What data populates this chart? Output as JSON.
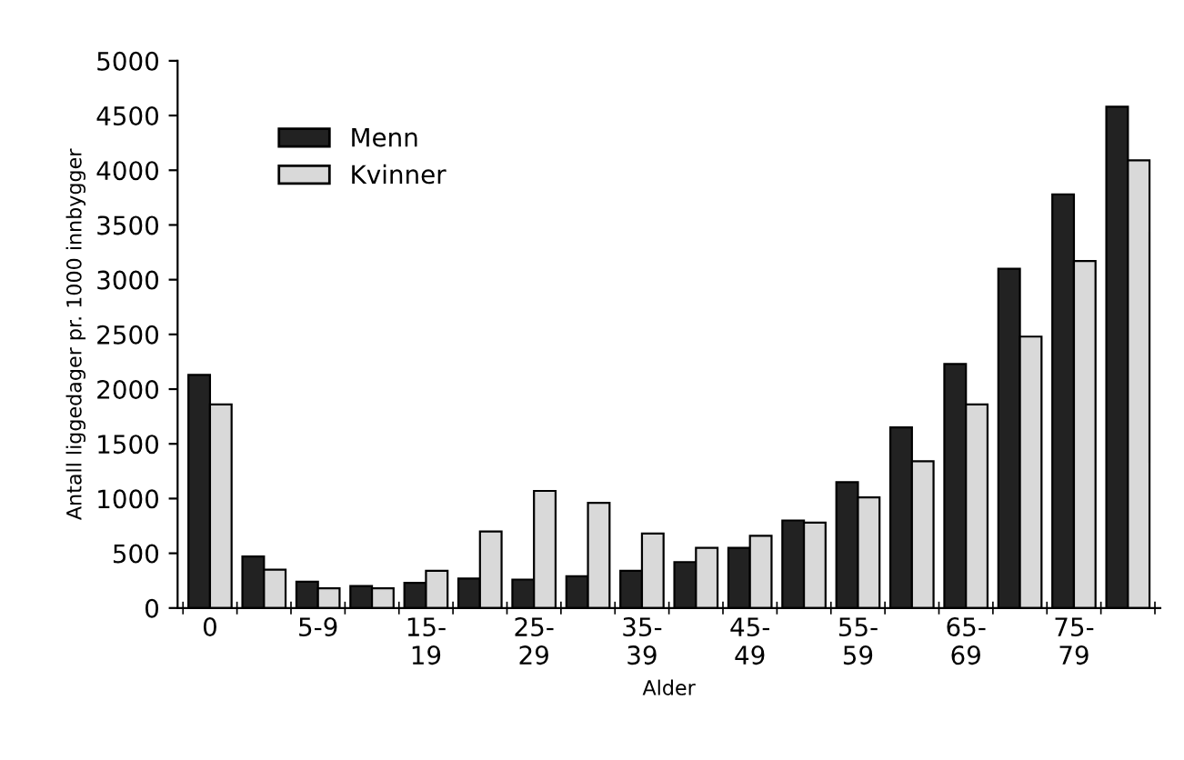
{
  "chart_data": {
    "type": "bar",
    "xlabel": "Alder",
    "ylabel": "Antall liggedager pr. 1000 innbygger",
    "categories": [
      "0",
      null,
      "5-9",
      null,
      "15-\n19",
      null,
      "25-\n29",
      null,
      "35-\n39",
      null,
      "45-\n49",
      null,
      "55-\n59",
      null,
      "65-\n69",
      null,
      "75-\n79",
      null
    ],
    "series": [
      {
        "name": "Menn",
        "color": "#222222",
        "values": [
          2130,
          470,
          240,
          200,
          230,
          270,
          260,
          290,
          340,
          420,
          550,
          800,
          1150,
          1650,
          2230,
          3100,
          3780,
          4580
        ]
      },
      {
        "name": "Kvinner",
        "color": "#d9d9d9",
        "values": [
          1860,
          350,
          180,
          180,
          340,
          700,
          1070,
          960,
          680,
          550,
          660,
          780,
          1010,
          1340,
          1860,
          2480,
          3170,
          4090
        ]
      }
    ],
    "ylim": [
      0,
      5000
    ],
    "yticks": [
      0,
      500,
      1000,
      1500,
      2000,
      2500,
      3000,
      3500,
      4000,
      4500,
      5000
    ],
    "grid": false,
    "legend": "top left"
  }
}
